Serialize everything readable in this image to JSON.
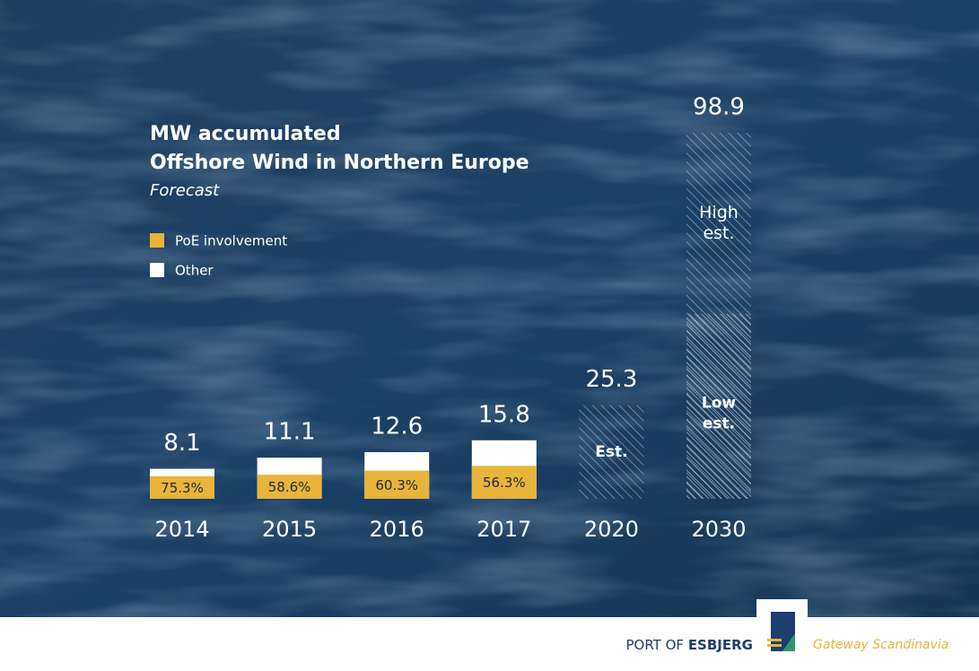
{
  "chart_data": {
    "type": "bar",
    "title": "MW accumulated",
    "title_line2": "Offshore Wind in Northern Europe",
    "subtitle": "Forecast",
    "categories": [
      "2014",
      "2015",
      "2016",
      "2017",
      "2020",
      "2030"
    ],
    "totals": [
      8.1,
      11.1,
      12.6,
      15.8,
      25.3,
      98.9
    ],
    "estimated": [
      false,
      false,
      false,
      false,
      true,
      true
    ],
    "estimate_label": "Est.",
    "low_estimate_label": "Low est.",
    "high_estimate_label": "High est.",
    "low_estimate_2030": 50,
    "series": [
      {
        "name": "PoE involvement",
        "color": "#e8b43a",
        "values": [
          75.3,
          58.6,
          60.3,
          56.3,
          null,
          null
        ],
        "value_labels": [
          "75.3%",
          "58.6%",
          "60.3%",
          "56.3%",
          null,
          null
        ]
      },
      {
        "name": "Other",
        "color": "#ffffff"
      }
    ]
  },
  "footer": {
    "brand_prefix": "PORT OF",
    "brand": "ESBJERG",
    "tagline": "Gateway Scandinavia"
  }
}
